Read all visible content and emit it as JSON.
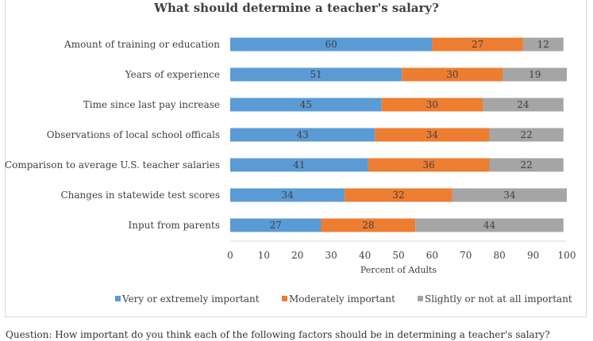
{
  "question": "Question: How important do you think each of the following factors should be in determining a teacher's salary?",
  "chart_data": {
    "type": "bar",
    "orientation": "horizontal",
    "stacked": true,
    "title": "What should determine a teacher's salary?",
    "xlabel": "Percent of Adults",
    "ylabel": "",
    "xlim": [
      0,
      100
    ],
    "ticks": [
      "0",
      "10",
      "20",
      "30",
      "40",
      "50",
      "60",
      "70",
      "80",
      "90",
      "100"
    ],
    "categories": [
      "Amount of training or education",
      "Years of experience",
      "Time since last pay increase",
      "Observations of local school officals",
      "Comparison to average U.S. teacher salaries",
      "Changes in statewide test scores",
      "Input from parents"
    ],
    "series": [
      {
        "name": "Very or extremely important",
        "color": "#5b9bd5",
        "values": [
          60,
          51,
          45,
          43,
          41,
          34,
          27
        ]
      },
      {
        "name": "Moderately important",
        "color": "#ed7d31",
        "values": [
          27,
          30,
          30,
          34,
          36,
          32,
          28
        ]
      },
      {
        "name": "Slightly or not at all important",
        "color": "#a5a5a5",
        "values": [
          12,
          19,
          24,
          22,
          22,
          34,
          44
        ]
      }
    ],
    "legend_position": "bottom",
    "grid": false
  }
}
